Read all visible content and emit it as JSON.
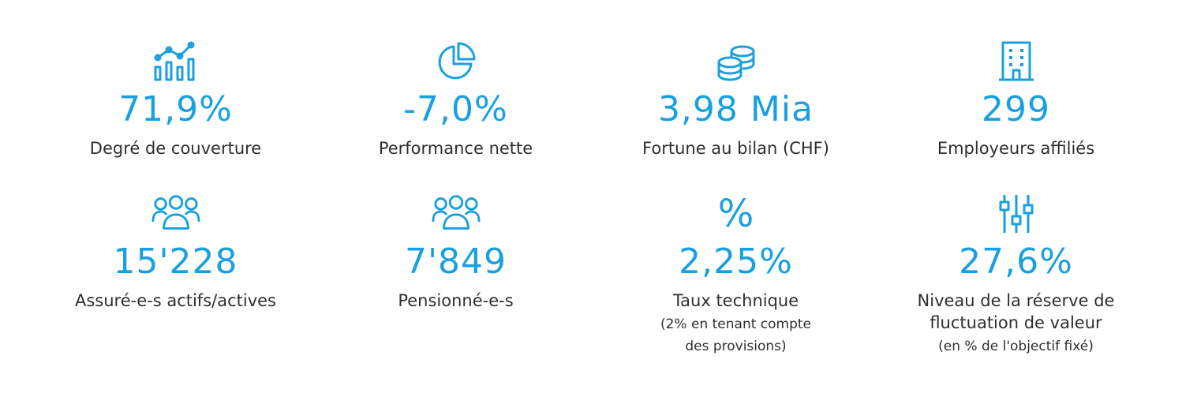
{
  "accent": "#1aa0e0",
  "stats": [
    {
      "icon": "chart-analytics-icon",
      "value": "71,9%",
      "label": "Degré de couverture"
    },
    {
      "icon": "pie-chart-icon",
      "value": "-7,0%",
      "label": "Performance nette"
    },
    {
      "icon": "coins-icon",
      "value": "3,98 Mia",
      "label": "Fortune au bilan (CHF)"
    },
    {
      "icon": "building-icon",
      "value": "299",
      "label": "Employeurs affiliés"
    },
    {
      "icon": "people-group-icon",
      "value": "15'228",
      "label": "Assuré-e-s actifs/actives"
    },
    {
      "icon": "people-group-icon",
      "value": "7'849",
      "label": "Pensionné-e-s"
    },
    {
      "icon": "percent-icon",
      "icon_glyph": "%",
      "value": "2,25%",
      "label": "Taux technique",
      "note_line1": "(2% en tenant compte",
      "note_line2": "des provisions)"
    },
    {
      "icon": "sliders-icon",
      "value": "27,6%",
      "label_line1": "Niveau de la réserve de",
      "label_line2": "fluctuation de valeur",
      "note": "(en % de l'objectif fixé)"
    }
  ]
}
